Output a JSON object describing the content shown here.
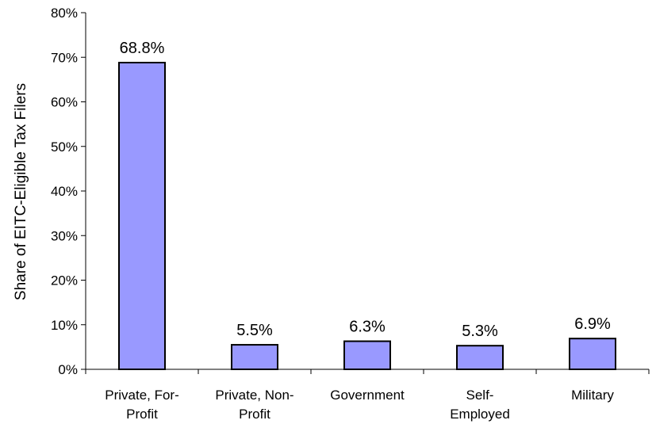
{
  "chart_data": {
    "type": "bar",
    "categories": [
      [
        "Private, For-",
        "Profit"
      ],
      [
        "Private, Non-",
        "Profit"
      ],
      [
        "Government"
      ],
      [
        "Self-",
        "Employed"
      ],
      [
        "Military"
      ]
    ],
    "values": [
      68.8,
      5.5,
      6.3,
      5.3,
      6.9
    ],
    "data_labels": [
      "68.8%",
      "5.5%",
      "6.3%",
      "5.3%",
      "6.9%"
    ],
    "ylabel": "Share of EITC-Eligible Tax Filers",
    "xlabel": "",
    "ylim": [
      0,
      80
    ],
    "yticks": [
      "0%",
      "10%",
      "20%",
      "30%",
      "40%",
      "50%",
      "60%",
      "70%",
      "80%"
    ],
    "grid": false,
    "bar_color": "#9999FF",
    "bar_edge_color": "#000000"
  }
}
